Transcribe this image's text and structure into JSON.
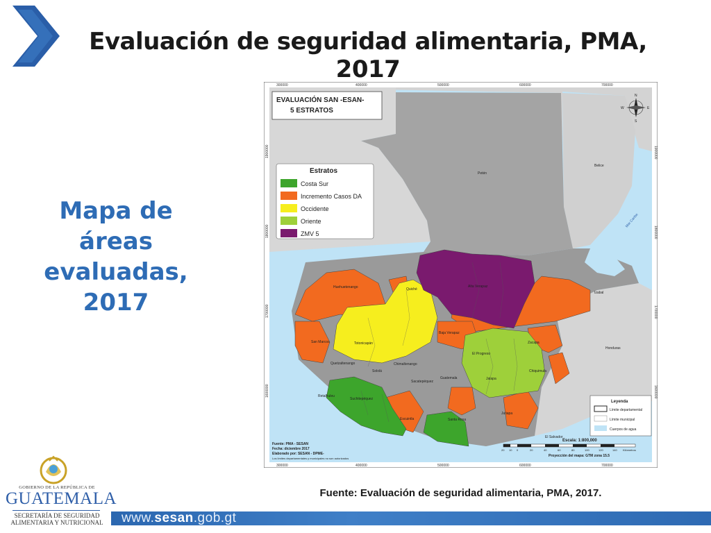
{
  "slide": {
    "title": "Evaluación de seguridad alimentaria, PMA, 2017",
    "left_heading_lines": [
      "Mapa de",
      "áreas",
      "evaluadas,",
      "2017"
    ],
    "source": "Fuente: Evaluación de seguridad alimentaria, PMA, 2017."
  },
  "map": {
    "title_line1": "EVALUACIÓN SAN -ESAN-",
    "title_line2": "5 ESTRATOS",
    "top_ticks": [
      "300000",
      "400000",
      "500000",
      "600000",
      "700000"
    ],
    "bottom_ticks": [
      "300000",
      "400000",
      "500000",
      "600000",
      "700000"
    ],
    "left_ticks": [
      "1900000",
      "1800000",
      "1700000",
      "1600000"
    ],
    "right_ticks": [
      "1900000",
      "1800000",
      "1700000",
      "1600000"
    ],
    "compass": {
      "n": "N",
      "s": "S",
      "e": "E",
      "w": "W"
    },
    "legend_strata": {
      "title": "Estratos",
      "items": [
        {
          "label": "Costa Sur",
          "color": "#3da52c"
        },
        {
          "label": "Incremento Casos DA",
          "color": "#f26a1f"
        },
        {
          "label": "Occidente",
          "color": "#f6ee1e"
        },
        {
          "label": "Oriente",
          "color": "#9ed03a"
        },
        {
          "label": "ZMV 5",
          "color": "#7a1a6e"
        }
      ]
    },
    "legend_general": {
      "title": "Leyenda",
      "items": [
        {
          "label": "Límite departamental"
        },
        {
          "label": "Límite municipal"
        },
        {
          "label": "Cuerpos de agua"
        }
      ]
    },
    "place_labels": {
      "peten": "Petén",
      "belice": "Belice",
      "mar_caribe": "Mar Caribe",
      "honduras": "Honduras",
      "el_salvador": "El Salvador",
      "huehuetenango": "Huehuetenango",
      "quiche": "Quiché",
      "alta_verapaz": "Alta Verapaz",
      "izabal": "Izabal",
      "baja_verapaz": "Baja Verapaz",
      "san_marcos": "San Marcos",
      "totonicapan": "Totonicapán",
      "quetzaltenango": "Quetzaltenango",
      "chimaltenango": "Chimaltenango",
      "solola": "Sololá",
      "el_progreso": "El Progreso",
      "zacapa": "Zacapa",
      "chiquimula": "Chiquimula",
      "guatemala": "Guatemala",
      "sacatepequez": "Sacatepéquez",
      "jalapa": "Jalapa",
      "retalhuleu": "Retalhuleu",
      "suchitepequez": "Suchitepéquez",
      "escuintla": "Escuintla",
      "santa_rosa": "Santa Rosa",
      "jutiapa": "Jutiapa"
    },
    "info_lines": [
      "Fuente: PMA - SESAN",
      "Fecha: diciembre 2017",
      "Elaborado por: SESAN - DPME-",
      "Los límites departamentales y municipales no son autorizados"
    ],
    "scale_text": "Escala: 1:800,000",
    "scale_ticks": [
      "20",
      "10",
      "0",
      "20",
      "40",
      "60",
      "80",
      "100",
      "120",
      "140"
    ],
    "scale_unit": "Kilómetros",
    "projection": "Proyección del mapa: GTM zona 15.5"
  },
  "branding": {
    "gov_line": "GOBIERNO DE LA REPÚBLICA DE",
    "gov_name": "GUATEMALA",
    "sub_line1": "SECRETARÍA DE SEGURIDAD",
    "sub_line2": "ALIMENTARIA Y NUTRICIONAL",
    "url_prefix": "www.",
    "url_bold": "sesan",
    "url_suffix": ".gob.gt"
  },
  "colors": {
    "accent_blue": "#2e6cb5",
    "costa_sur": "#3da52c",
    "incremento": "#f26a1f",
    "occidente": "#f6ee1e",
    "oriente": "#9ed03a",
    "zmv5": "#7a1a6e",
    "water": "#bfe3f6",
    "gray_land": "#a8a8a8"
  }
}
